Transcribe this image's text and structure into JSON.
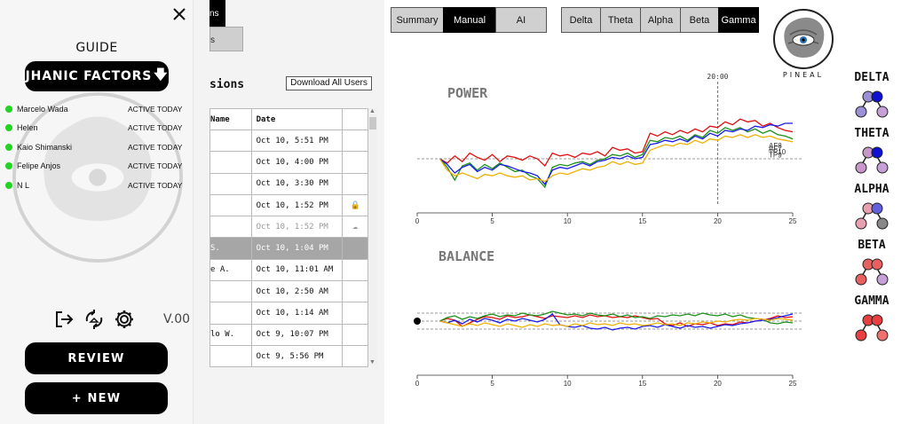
{
  "sidebar": {
    "guide_label": "GUIDE",
    "factors_label": "JHANIC FACTORS",
    "users": [
      {
        "name": "Marcelo Wada",
        "status": "ACTIVE TODAY"
      },
      {
        "name": "Helen",
        "status": "ACTIVE TODAY"
      },
      {
        "name": "Kaio Shimanski",
        "status": "ACTIVE TODAY"
      },
      {
        "name": "Felipe Anjos",
        "status": "ACTIVE TODAY"
      },
      {
        "name": "N L",
        "status": "ACTIVE TODAY"
      }
    ],
    "version": "V.00",
    "review_label": "REVIEW",
    "new_label": "+ NEW",
    "icons": [
      "close-icon",
      "logout-icon",
      "sync-icon",
      "gear-icon",
      "brain-watermark-icon"
    ],
    "status_color": "#22d422"
  },
  "sessions": {
    "tab_stub_1": "ns",
    "tab_stub_2": "s",
    "title": "sions",
    "download_label": "Download All Users",
    "columns": [
      "Name",
      "Date",
      ""
    ],
    "rows": [
      {
        "name": "",
        "date": "Oct 10, 5:51 PM",
        "icon": ""
      },
      {
        "name": "",
        "date": "Oct 10, 4:00 PM",
        "icon": ""
      },
      {
        "name": "",
        "date": "Oct 10, 3:30 PM",
        "icon": ""
      },
      {
        "name": "",
        "date": "Oct 10, 1:52 PM",
        "icon": "lock"
      },
      {
        "name": "",
        "date": "Oct 10, 1:52 PM",
        "icon": "cloud"
      },
      {
        "name": "S.",
        "date": "Oct 10, 1:04 PM",
        "icon": ""
      },
      {
        "name": "e A.",
        "date": "Oct 10, 11:01 AM",
        "icon": ""
      },
      {
        "name": "",
        "date": "Oct 10, 2:50 AM",
        "icon": ""
      },
      {
        "name": "",
        "date": "Oct 10, 1:14 AM",
        "icon": ""
      },
      {
        "name": "lo W.",
        "date": "Oct 9, 10:07 PM",
        "icon": ""
      },
      {
        "name": "",
        "date": "Oct 9, 5:56 PM",
        "icon": ""
      }
    ],
    "selected_row": 5,
    "faded_row": 4
  },
  "main": {
    "view_tabs": [
      {
        "label": "Summary",
        "active": false
      },
      {
        "label": "Manual",
        "active": true
      },
      {
        "label": "AI",
        "active": false
      }
    ],
    "band_tabs": [
      {
        "label": "Delta",
        "active": false
      },
      {
        "label": "Theta",
        "active": false
      },
      {
        "label": "Alpha",
        "active": false
      },
      {
        "label": "Beta",
        "active": false
      },
      {
        "label": "Gamma",
        "active": true
      }
    ],
    "logo_text": "PINEAL",
    "band_legend": [
      {
        "name": "DELTA",
        "colors": [
          "#9b8fd6",
          "#1010d0",
          "#9b8fd6",
          "#c8a0d8"
        ]
      },
      {
        "name": "THETA",
        "colors": [
          "#c896c8",
          "#1010d0",
          "#c896c8",
          "#c8a0d8"
        ]
      },
      {
        "name": "ALPHA",
        "colors": [
          "#e8a0b0",
          "#6060e0",
          "#e8a0b0",
          "#888888"
        ]
      },
      {
        "name": "BETA",
        "colors": [
          "#e86060",
          "#e86060",
          "#e86060",
          "#c8a0d8"
        ]
      },
      {
        "name": "GAMMA",
        "colors": [
          "#e84040",
          "#e84040",
          "#e84040",
          "#f07070"
        ]
      }
    ]
  },
  "chart_data": [
    {
      "type": "line",
      "title": "POWER",
      "xlim": [
        0,
        25
      ],
      "xticks": [
        0,
        5,
        10,
        15,
        20,
        25
      ],
      "cursor_x": 20,
      "cursor_label": "20:00",
      "baseline": 0,
      "ylim": [
        -3,
        3
      ],
      "series": [
        {
          "name": "AF8",
          "color": "#e01010",
          "x": [
            1.5,
            2,
            2.5,
            3,
            3.5,
            4,
            4.5,
            5,
            5.5,
            6,
            6.5,
            7,
            7.5,
            8,
            8.5,
            9,
            9.5,
            10,
            10.5,
            11,
            11.5,
            12,
            12.5,
            13,
            13.5,
            14,
            14.5,
            15,
            15.5,
            16,
            16.5,
            17,
            17.5,
            18,
            18.5,
            19,
            19.5,
            20,
            20.5,
            21,
            21.5,
            22,
            22.5,
            23,
            23.5,
            24,
            24.5,
            25
          ],
          "y": [
            0,
            -0.3,
            0.2,
            -0.2,
            0.4,
            0.1,
            -0.1,
            0.3,
            -0.2,
            0.2,
            0.1,
            -0.1,
            0.2,
            0,
            -0.5,
            0.4,
            0.2,
            0.3,
            0.1,
            0.4,
            0.3,
            0.5,
            0.2,
            0.8,
            0.6,
            0.7,
            0.4,
            0.5,
            1.8,
            1.6,
            1.9,
            1.7,
            2.0,
            1.8,
            2.1,
            1.9,
            2.3,
            2.2,
            2.6,
            2.4,
            2.8,
            2.6,
            2.7,
            2.3,
            2.5,
            2.2,
            2.0,
            1.9
          ]
        },
        {
          "name": "AF7",
          "color": "#1a8f1a",
          "x": [
            1.5,
            2,
            2.5,
            3,
            3.5,
            4,
            4.5,
            5,
            5.5,
            6,
            6.5,
            7,
            7.5,
            8,
            8.5,
            9,
            9.5,
            10,
            10.5,
            11,
            11.5,
            12,
            12.5,
            13,
            13.5,
            14,
            14.5,
            15,
            15.5,
            16,
            16.5,
            17,
            17.5,
            18,
            18.5,
            19,
            19.5,
            20,
            20.5,
            21,
            21.5,
            22,
            22.5,
            23,
            23.5,
            24,
            24.5,
            25
          ],
          "y": [
            0,
            -0.6,
            -1.5,
            -0.5,
            -0.3,
            -0.8,
            -0.4,
            -0.7,
            -0.3,
            -0.6,
            -0.9,
            -0.8,
            -1.2,
            -1.4,
            -2.0,
            -0.6,
            -0.4,
            -0.5,
            -0.3,
            -0.2,
            -0.4,
            -0.1,
            0,
            0.3,
            0.2,
            0.4,
            0.1,
            0.3,
            1.3,
            1.2,
            1.5,
            1.4,
            1.6,
            1.3,
            1.7,
            1.5,
            2.0,
            1.8,
            2.2,
            2.0,
            2.2,
            1.9,
            2.1,
            1.8,
            2.0,
            1.7,
            1.6,
            1.4
          ]
        },
        {
          "name": "TP10",
          "color": "#1a1aee",
          "x": [
            1.5,
            2,
            2.5,
            3,
            3.5,
            4,
            4.5,
            5,
            5.5,
            6,
            6.5,
            7,
            7.5,
            8,
            8.5,
            9,
            9.5,
            10,
            10.5,
            11,
            11.5,
            12,
            12.5,
            13,
            13.5,
            14,
            14.5,
            15,
            15.5,
            16,
            16.5,
            17,
            17.5,
            18,
            18.5,
            19,
            19.5,
            20,
            20.5,
            21,
            21.5,
            22,
            22.5,
            23,
            23.5,
            24,
            24.5,
            25
          ],
          "y": [
            0,
            -0.4,
            -1.0,
            -0.6,
            -0.4,
            -0.9,
            -0.6,
            -0.8,
            -0.4,
            -0.5,
            -0.7,
            -0.9,
            -1.0,
            -1.2,
            -1.8,
            -0.8,
            -0.6,
            -0.7,
            -0.5,
            -0.3,
            -0.5,
            -0.2,
            -0.1,
            0.1,
            0,
            0.2,
            0,
            0.1,
            1.0,
            1.1,
            1.3,
            1.2,
            1.4,
            1.2,
            1.6,
            1.4,
            1.8,
            1.6,
            2.0,
            1.9,
            2.1,
            2.0,
            2.3,
            2.2,
            2.4,
            2.3,
            2.5,
            2.5
          ]
        },
        {
          "name": "TP9",
          "color": "#f0b000",
          "x": [
            1.5,
            2,
            2.5,
            3,
            3.5,
            4,
            4.5,
            5,
            5.5,
            6,
            6.5,
            7,
            7.5,
            8,
            8.5,
            9,
            9.5,
            10,
            10.5,
            11,
            11.5,
            12,
            12.5,
            13,
            13.5,
            14,
            14.5,
            15,
            15.5,
            16,
            16.5,
            17,
            17.5,
            18,
            18.5,
            19,
            19.5,
            20,
            20.5,
            21,
            21.5,
            22,
            22.5,
            23,
            23.5,
            24,
            24.5,
            25
          ],
          "y": [
            0,
            -0.8,
            -1.2,
            -1.0,
            -1.2,
            -1.4,
            -1.1,
            -1.2,
            -1.0,
            -1.2,
            -1.3,
            -1.2,
            -1.5,
            -1.4,
            -1.6,
            -1.2,
            -1.0,
            -1.1,
            -0.9,
            -0.7,
            -0.8,
            -0.6,
            -0.5,
            -0.2,
            -0.4,
            -0.2,
            -0.4,
            -0.3,
            0.6,
            0.8,
            1.0,
            0.9,
            1.1,
            1.0,
            1.3,
            1.1,
            1.4,
            1.3,
            1.6,
            1.5,
            1.7,
            1.5,
            1.7,
            1.5,
            1.6,
            1.4,
            1.3,
            1.2
          ]
        }
      ],
      "end_labels": [
        "AF8",
        "AF7",
        "TP10",
        "TP9"
      ]
    },
    {
      "type": "line",
      "title": "BALANCE",
      "xlim": [
        0,
        25
      ],
      "xticks": [
        0,
        5,
        10,
        15,
        20,
        25
      ],
      "baseline": 0,
      "ylim": [
        -2,
        2
      ],
      "series": [
        {
          "name": "red",
          "color": "#e01010",
          "x": [
            1.5,
            2,
            2.5,
            3,
            3.5,
            4,
            4.5,
            5,
            5.5,
            6,
            6.5,
            7,
            7.5,
            8,
            8.5,
            9,
            9.5,
            10,
            10.5,
            11,
            11.5,
            12,
            12.5,
            13,
            13.5,
            14,
            14.5,
            15,
            15.5,
            16,
            16.5,
            17,
            17.5,
            18,
            18.5,
            19,
            19.5,
            20,
            20.5,
            21,
            21.5,
            22,
            22.5,
            23,
            23.5,
            24,
            24.5,
            25
          ],
          "y": [
            0,
            0.3,
            0.1,
            -0.6,
            -0.2,
            0.2,
            0.5,
            0.4,
            0.2,
            0.6,
            0.4,
            0.5,
            0.7,
            0.5,
            0.3,
            0.6,
            0.5,
            0.4,
            0.6,
            0.4,
            0.7,
            0.5,
            0.6,
            0.4,
            0.5,
            0.4,
            0.6,
            0.4,
            0.2,
            0.3,
            -0.3,
            -0.5,
            -0.2,
            -0.6,
            -0.3,
            -0.4,
            -0.2,
            -0.5,
            -0.3,
            -0.4,
            -0.1,
            -0.2,
            0,
            0.1,
            0.3,
            0.6,
            0.4,
            0.5
          ]
        },
        {
          "name": "green",
          "color": "#1a8f1a",
          "x": [
            1.5,
            2,
            2.5,
            3,
            3.5,
            4,
            4.5,
            5,
            5.5,
            6,
            6.5,
            7,
            7.5,
            8,
            8.5,
            9,
            9.5,
            10,
            10.5,
            11,
            11.5,
            12,
            12.5,
            13,
            13.5,
            14,
            14.5,
            15,
            15.5,
            16,
            16.5,
            17,
            17.5,
            18,
            18.5,
            19,
            19.5,
            20,
            20.5,
            21,
            21.5,
            22,
            22.5,
            23,
            23.5,
            24,
            24.5,
            25
          ],
          "y": [
            0,
            0.4,
            0.6,
            0.2,
            0.5,
            0.3,
            0.6,
            0.8,
            0.5,
            0.7,
            0.6,
            0.9,
            0.7,
            0.6,
            0.8,
            1.1,
            0.9,
            0.7,
            0.8,
            0.6,
            0.9,
            0.7,
            0.6,
            0.8,
            0.5,
            0.7,
            0.4,
            0.5,
            0.3,
            0.6,
            0.5,
            0.7,
            0.6,
            0.8,
            0.6,
            0.9,
            0.7,
            0.6,
            0.8,
            0.5,
            0.7,
            0.4,
            0.3,
            0.2,
            -0.2,
            -0.3,
            -0.1,
            -0.2
          ]
        },
        {
          "name": "blue",
          "color": "#1a1aee",
          "x": [
            1.5,
            2,
            2.5,
            3,
            3.5,
            4,
            4.5,
            5,
            5.5,
            6,
            6.5,
            7,
            7.5,
            8,
            8.5,
            9,
            9.5,
            10,
            10.5,
            11,
            11.5,
            12,
            12.5,
            13,
            13.5,
            14,
            14.5,
            15,
            15.5,
            16,
            16.5,
            17,
            17.5,
            18,
            18.5,
            19,
            19.5,
            20,
            20.5,
            21,
            21.5,
            22,
            22.5,
            23,
            23.5,
            24,
            24.5,
            25
          ],
          "y": [
            0,
            -0.2,
            0.1,
            -0.3,
            0.2,
            -0.1,
            0.3,
            0.1,
            -0.2,
            0.2,
            0,
            0.3,
            0.1,
            -0.1,
            0.2,
            0.8,
            -0.4,
            -0.6,
            -0.7,
            -0.5,
            -0.8,
            -0.9,
            -0.7,
            -1.0,
            -0.8,
            -0.7,
            -0.9,
            -0.6,
            -0.5,
            -0.7,
            -0.4,
            -0.6,
            -0.8,
            -0.5,
            -0.7,
            -0.6,
            -0.8,
            -0.6,
            -0.4,
            -0.5,
            -0.3,
            -0.2,
            0,
            0.1,
            0.2,
            0.4,
            0.6,
            0.8
          ]
        },
        {
          "name": "yellow",
          "color": "#f0b000",
          "x": [
            1.5,
            2,
            2.5,
            3,
            3.5,
            4,
            4.5,
            5,
            5.5,
            6,
            6.5,
            7,
            7.5,
            8,
            8.5,
            9,
            9.5,
            10,
            10.5,
            11,
            11.5,
            12,
            12.5,
            13,
            13.5,
            14,
            14.5,
            15,
            15.5,
            16,
            16.5,
            17,
            17.5,
            18,
            18.5,
            19,
            19.5,
            20,
            20.5,
            21,
            21.5,
            22,
            22.5,
            23,
            23.5,
            24,
            24.5,
            25
          ],
          "y": [
            0,
            -0.2,
            -0.4,
            -0.6,
            -0.3,
            -0.5,
            -0.2,
            -0.4,
            -0.6,
            -0.3,
            -0.5,
            -0.7,
            -0.4,
            -0.6,
            -0.3,
            -0.5,
            -0.4,
            -0.6,
            -0.3,
            -0.5,
            -0.2,
            -0.4,
            -0.3,
            -0.5,
            -0.2,
            -0.4,
            -0.3,
            -0.5,
            -0.4,
            -0.2,
            -0.4,
            -0.3,
            -0.5,
            -0.2,
            -0.3,
            -0.1,
            -0.2,
            0,
            -0.1,
            0.1,
            0.2,
            0.1,
            0.3,
            0.2,
            0.1,
            0.3,
            0.2,
            0.1
          ]
        }
      ]
    }
  ]
}
